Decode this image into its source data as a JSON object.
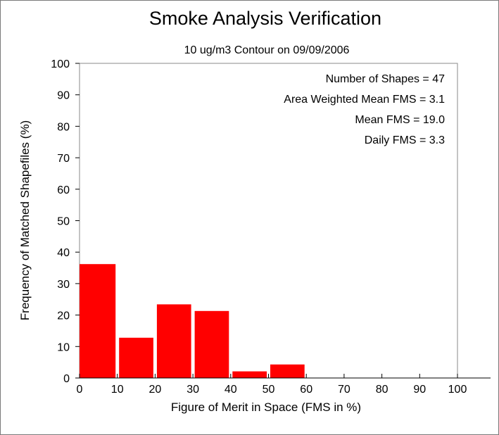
{
  "chart_data": {
    "type": "bar",
    "title": "Smoke Analysis Verification",
    "subtitle": "10 ug/m3 Contour on 09/09/2006",
    "xlabel": "Figure of Merit in Space (FMS in %)",
    "ylabel": "Frequency of Matched Shapefiles (%)",
    "xlim": [
      0,
      110
    ],
    "ylim": [
      0,
      100
    ],
    "x_ticks": [
      "0",
      "10",
      "20",
      "30",
      "40",
      "50",
      "60",
      "70",
      "80",
      "90",
      "100"
    ],
    "y_ticks": [
      "0",
      "10",
      "20",
      "30",
      "40",
      "50",
      "60",
      "70",
      "80",
      "90",
      "100"
    ],
    "bins": [
      {
        "from": 0,
        "to": 10,
        "value": 36.2
      },
      {
        "from": 10,
        "to": 20,
        "value": 12.8
      },
      {
        "from": 20,
        "to": 30,
        "value": 23.4
      },
      {
        "from": 30,
        "to": 40,
        "value": 21.3
      },
      {
        "from": 40,
        "to": 50,
        "value": 2.1
      },
      {
        "from": 50,
        "to": 60,
        "value": 4.3
      },
      {
        "from": 60,
        "to": 70,
        "value": 0
      },
      {
        "from": 70,
        "to": 80,
        "value": 0
      },
      {
        "from": 80,
        "to": 90,
        "value": 0
      },
      {
        "from": 90,
        "to": 100,
        "value": 0
      },
      {
        "from": 100,
        "to": 110,
        "value": 0
      }
    ],
    "bar_color": "#ff0000",
    "grid": false,
    "annotations": [
      "Number of Shapes = 47",
      "Area Weighted Mean FMS = 3.1",
      "Mean FMS = 19.0",
      "Daily FMS = 3.3"
    ]
  }
}
